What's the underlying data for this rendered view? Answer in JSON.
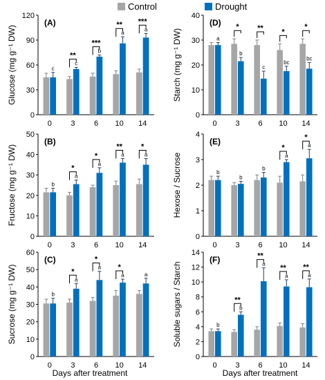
{
  "legend": [
    {
      "name": "Control",
      "color": "#a6a6a6"
    },
    {
      "name": "Drought",
      "color": "#0070c0"
    }
  ],
  "x_title": "Days after treatment",
  "chart_data": [
    {
      "type": "bar",
      "panel": "(A)",
      "ylabel": "Glucose (mg g⁻¹ DW)",
      "categories": [
        "0",
        "3",
        "6",
        "10",
        "14"
      ],
      "ylim": [
        0,
        120
      ],
      "yticks": [
        0,
        30,
        60,
        90,
        120
      ],
      "series": [
        {
          "name": "Control",
          "values": [
            45,
            43,
            46,
            49,
            51
          ],
          "errors": [
            5,
            3,
            4,
            4,
            4
          ]
        },
        {
          "name": "Drought",
          "values": [
            45,
            55,
            70,
            86,
            93
          ],
          "errors": [
            6,
            2,
            2,
            8,
            5
          ]
        }
      ],
      "letters": [
        [
          "",
          "c"
        ],
        [
          "",
          "c"
        ],
        [
          "",
          "b"
        ],
        [
          "",
          "a"
        ],
        [
          "",
          "a"
        ]
      ],
      "significance": [
        "",
        "**",
        "***",
        "**",
        "***"
      ]
    },
    {
      "type": "bar",
      "panel": "(B)",
      "ylabel": "Fructose (mg g⁻¹ DW)",
      "categories": [
        "0",
        "3",
        "6",
        "10",
        "14"
      ],
      "ylim": [
        0,
        50
      ],
      "yticks": [
        0,
        10,
        20,
        30,
        40,
        50
      ],
      "series": [
        {
          "name": "Control",
          "values": [
            21.5,
            20,
            24,
            25,
            25.5
          ],
          "errors": [
            2,
            1.5,
            1,
            2,
            2.5
          ]
        },
        {
          "name": "Drought",
          "values": [
            21.5,
            25.5,
            31,
            36,
            35
          ],
          "errors": [
            2,
            2,
            2.5,
            2,
            3
          ]
        }
      ],
      "letters": [
        [
          "",
          "b"
        ],
        [
          "",
          "a"
        ],
        [
          "",
          "a"
        ],
        [
          "",
          "a"
        ],
        [
          "",
          "a"
        ]
      ],
      "significance": [
        "",
        "*",
        "*",
        "**",
        "*"
      ]
    },
    {
      "type": "bar",
      "panel": "(C)",
      "ylabel": "Sucrose (mg g⁻¹ DW)",
      "categories": [
        "0",
        "3",
        "6",
        "10",
        "14"
      ],
      "ylim": [
        0,
        60
      ],
      "yticks": [
        0,
        10,
        20,
        30,
        40,
        50,
        60
      ],
      "series": [
        {
          "name": "Control",
          "values": [
            30.5,
            31,
            32,
            35,
            36
          ],
          "errors": [
            2.5,
            2,
            2,
            3,
            2
          ]
        },
        {
          "name": "Drought",
          "values": [
            30.5,
            39,
            44,
            42.5,
            42
          ],
          "errors": [
            3,
            3,
            5,
            2,
            3
          ]
        }
      ],
      "letters": [
        [
          "",
          "b"
        ],
        [
          "",
          "a"
        ],
        [
          "",
          "a"
        ],
        [
          "",
          "a"
        ],
        [
          "",
          "a"
        ]
      ],
      "significance": [
        "",
        "*",
        "*",
        "*",
        ""
      ]
    },
    {
      "type": "bar",
      "panel": "(D)",
      "ylabel": "Starch (mg g⁻¹ DW)",
      "categories": [
        "0",
        "3",
        "6",
        "10",
        "14"
      ],
      "ylim": [
        0,
        40
      ],
      "yticks": [
        0,
        10,
        20,
        30,
        40
      ],
      "series": [
        {
          "name": "Control",
          "values": [
            28,
            28.5,
            28,
            26,
            28.5
          ],
          "errors": [
            1,
            2,
            2,
            2.5,
            2
          ]
        },
        {
          "name": "Drought",
          "values": [
            28,
            21.5,
            14.5,
            17.5,
            18.5
          ],
          "errors": [
            1,
            1.5,
            3,
            2,
            2.5
          ]
        }
      ],
      "letters": [
        [
          "",
          "a"
        ],
        [
          "",
          "b"
        ],
        [
          "",
          "c"
        ],
        [
          "",
          "bc"
        ],
        [
          "",
          "bc"
        ]
      ],
      "significance": [
        "",
        "*",
        "**",
        "*",
        "*"
      ]
    },
    {
      "type": "bar",
      "panel": "(E)",
      "ylabel": "Hexose / Sucrose",
      "categories": [
        "0",
        "3",
        "6",
        "10",
        "14"
      ],
      "ylim": [
        0,
        4
      ],
      "yticks": [
        0,
        1,
        2,
        3,
        4
      ],
      "series": [
        {
          "name": "Control",
          "values": [
            2.2,
            2.0,
            2.2,
            2.1,
            2.15
          ],
          "errors": [
            0.15,
            0.1,
            0.2,
            0.25,
            0.25
          ]
        },
        {
          "name": "Drought",
          "values": [
            2.2,
            2.05,
            2.3,
            2.9,
            3.05
          ],
          "errors": [
            0.15,
            0.1,
            0.2,
            0.1,
            0.35
          ]
        }
      ],
      "letters": [
        [
          "",
          "b"
        ],
        [
          "",
          "b"
        ],
        [
          "",
          "b"
        ],
        [
          "",
          "a"
        ],
        [
          "",
          "a"
        ]
      ],
      "significance": [
        "",
        "",
        "",
        "*",
        "*"
      ]
    },
    {
      "type": "bar",
      "panel": "(F)",
      "ylabel": "Soluble sugars / Starch",
      "categories": [
        "0",
        "3",
        "6",
        "10",
        "14"
      ],
      "ylim": [
        0,
        14
      ],
      "yticks": [
        0,
        2,
        4,
        6,
        8,
        10,
        12,
        14
      ],
      "series": [
        {
          "name": "Control",
          "values": [
            3.4,
            3.3,
            3.6,
            4.1,
            3.9
          ],
          "errors": [
            0.3,
            0.3,
            0.4,
            0.4,
            0.5
          ]
        },
        {
          "name": "Drought",
          "values": [
            3.4,
            5.6,
            10.1,
            9.4,
            9.3
          ],
          "errors": [
            0.3,
            0.4,
            1.8,
            0.9,
            1.1
          ]
        }
      ],
      "letters": [
        [
          "",
          "b"
        ],
        [
          "",
          "b"
        ],
        [
          "",
          "a"
        ],
        [
          "",
          "a"
        ],
        [
          "",
          "a"
        ]
      ],
      "significance": [
        "",
        "**",
        "**",
        "**",
        "**"
      ]
    }
  ]
}
